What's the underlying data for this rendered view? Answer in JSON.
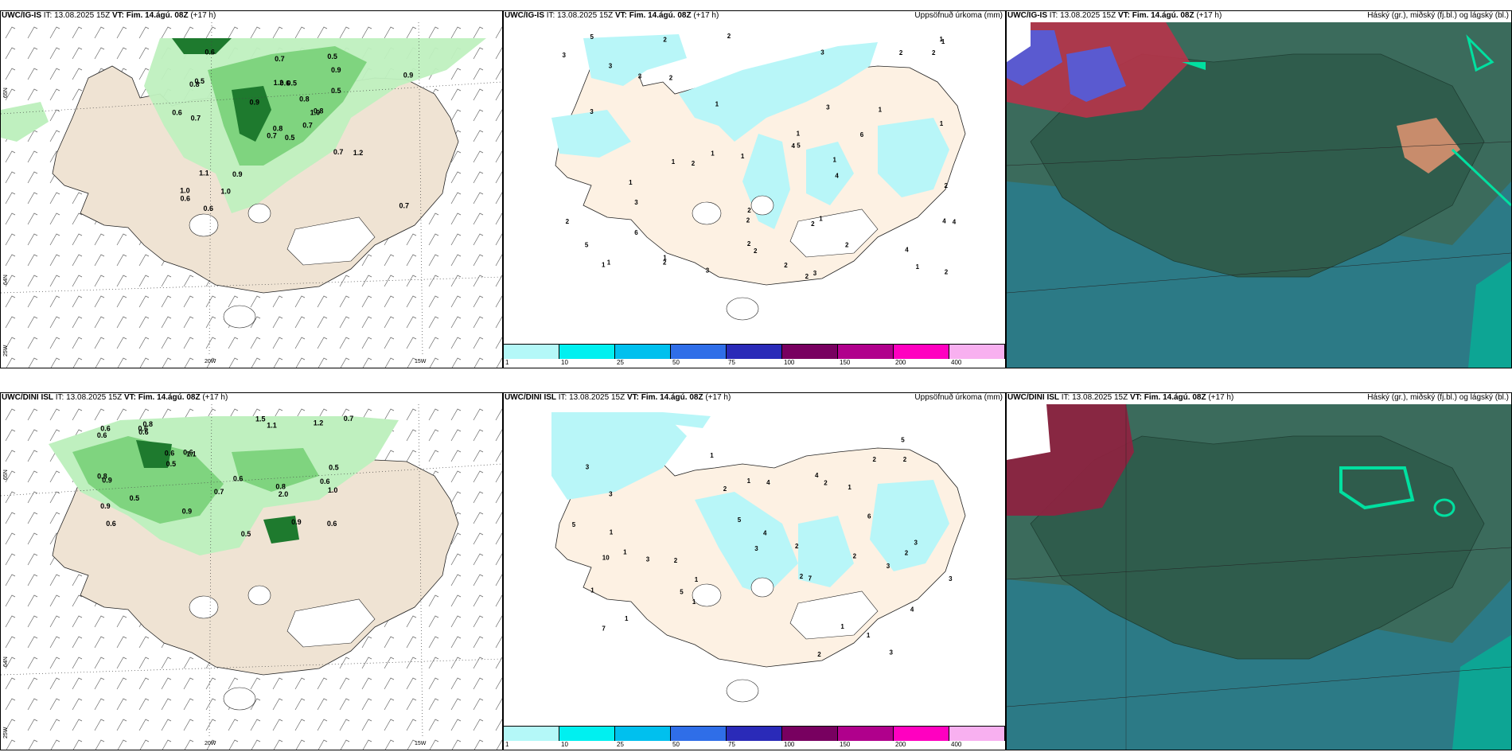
{
  "panels": [
    {
      "id": "p1",
      "model": "UWC/IG-IS",
      "it_label": "IT:",
      "it": "13.08.2025 15Z",
      "vt_label": "VT:",
      "vt": "Fim. 14.ágú. 08Z",
      "lead": "(+17 h)",
      "right_label": ""
    },
    {
      "id": "p2",
      "model": "UWC/IG-IS",
      "it_label": "IT:",
      "it": "13.08.2025 15Z",
      "vt_label": "VT:",
      "vt": "Fim. 14.ágú. 08Z",
      "lead": "(+17 h)",
      "right_label": "Uppsöfnuð úrkoma (mm)"
    },
    {
      "id": "p3",
      "model": "UWC/IG-IS",
      "it_label": "IT:",
      "it": "13.08.2025 15Z",
      "vt_label": "VT:",
      "vt": "Fim. 14.ágú. 08Z",
      "lead": "(+17 h)",
      "right_label": "Háský (gr.), miðský (fj.bl.) og lágský (bl.)"
    },
    {
      "id": "p4",
      "model": "UWC/DINI ISL",
      "it_label": "IT:",
      "it": "13.08.2025 15Z",
      "vt_label": "VT:",
      "vt": "Fim. 14.ágú. 08Z",
      "lead": "(+17 h)",
      "right_label": ""
    },
    {
      "id": "p5",
      "model": "UWC/DINI ISL",
      "it_label": "IT:",
      "it": "13.08.2025 15Z",
      "vt_label": "VT:",
      "vt": "Fim. 14.ágú. 08Z",
      "lead": "(+17 h)",
      "right_label": "Uppsöfnuð úrkoma (mm)"
    },
    {
      "id": "p6",
      "model": "UWC/DINI ISL",
      "it_label": "IT:",
      "it": "13.08.2025 15Z",
      "vt_label": "VT:",
      "vt": "Fim. 14.ágú. 08Z",
      "lead": "(+17 h)",
      "right_label": "Háský (gr.), miðský (fj.bl.) og lágský (bl.)"
    }
  ],
  "axis_labels": {
    "lon_20": "20W",
    "lon_15": "15W",
    "lat_65": "65N",
    "lat_64": "64N",
    "lon_25": "25W"
  },
  "legend": {
    "ticks": [
      "1",
      "10",
      "25",
      "50",
      "75",
      "100",
      "150",
      "200",
      "400"
    ],
    "colors": [
      "#b4f8f8",
      "#00f0f0",
      "#00c0ee",
      "#2f6ee8",
      "#2a2ab8",
      "#780060",
      "#b0008c",
      "#ff00c0",
      "#f8b0f0"
    ]
  },
  "colors": {
    "land": "#efe3d3",
    "green_light": "#bff0bf",
    "green_mid": "#7fd47f",
    "green_dark": "#1e7a2e",
    "precip": "#b8f6f8",
    "clouds_ocean": "#2c7a86",
    "clouds_land": "#2f5c4c",
    "clouds_red": "#b8344a",
    "clouds_blue": "#5a5ad0"
  },
  "values_top_left": [
    "0.5",
    "0.8",
    "0.8",
    "1.0",
    "1.0",
    "0.9",
    "0.5",
    "0.5",
    "0.9",
    "0.7",
    "0.6",
    "0.7",
    "0.7",
    "0.9",
    "0.7",
    "0.5",
    "0.6",
    "1.2",
    "0.8",
    "1.1",
    "0.9",
    "0.6",
    "1.0",
    "0.6",
    "0.8",
    "1.2",
    "0.5",
    "0.7",
    "0.6",
    "0.7"
  ],
  "values_bottom_left": [
    "0.8",
    "0.6",
    "0.6",
    "0.8",
    "1.1",
    "0.9",
    "0.9",
    "1.1",
    "0.6",
    "0.5",
    "0.6",
    "0.8",
    "0.6",
    "0.6",
    "0.9",
    "0.5",
    "0.7",
    "0.6",
    "0.6",
    "0.5",
    "0.7",
    "1.2",
    "0.5",
    "1.0",
    "1.5",
    "0.6",
    "2.0",
    "0.9",
    "0.6"
  ],
  "values_top_mid": [
    "3",
    "2",
    "1",
    "2",
    "2",
    "3",
    "1",
    "1",
    "2",
    "1",
    "2",
    "2",
    "1",
    "2",
    "3",
    "4",
    "3",
    "2",
    "2",
    "3",
    "2",
    "1",
    "1",
    "1",
    "1",
    "1",
    "2",
    "3",
    "5",
    "4",
    "1",
    "3",
    "2",
    "2",
    "6",
    "1",
    "4",
    "5",
    "3",
    "4",
    "5",
    "6",
    "4",
    "1",
    "2",
    "1",
    "2",
    "2",
    "3",
    "2",
    "1",
    "1",
    "2"
  ],
  "values_bottom_mid": [
    "3",
    "1",
    "2",
    "3",
    "4",
    "3",
    "1",
    "2",
    "1",
    "1",
    "2",
    "1",
    "1",
    "1",
    "2",
    "1",
    "2",
    "4",
    "5",
    "7",
    "5",
    "4",
    "6",
    "3",
    "3",
    "1",
    "3",
    "3",
    "5",
    "2",
    "7",
    "10",
    "5",
    "4",
    "2",
    "3",
    "2",
    "1",
    "2",
    "2",
    "1"
  ]
}
